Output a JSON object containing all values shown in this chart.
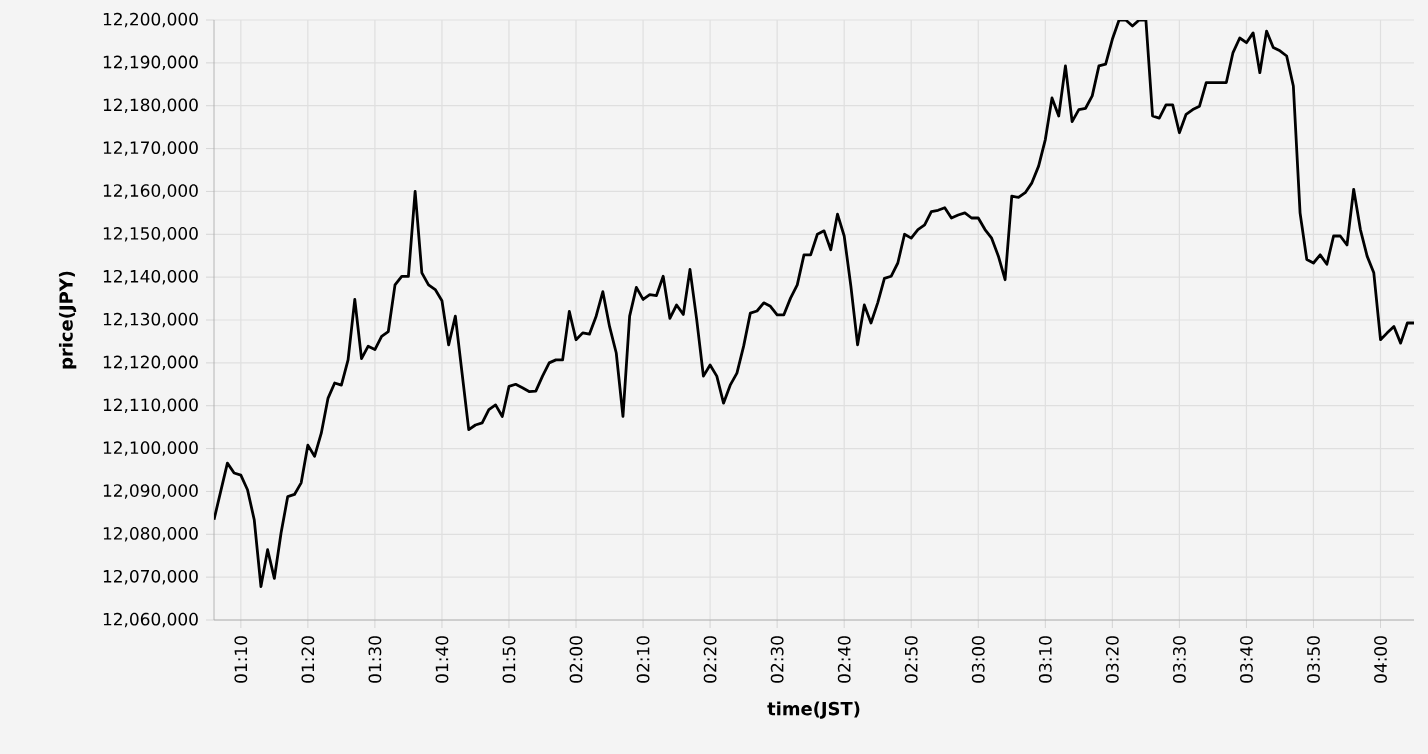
{
  "chart_data": {
    "type": "line",
    "xlabel": "time(JST)",
    "ylabel": "price(JPY)",
    "x": [
      1.1,
      1.1333,
      1.15,
      1.1667,
      1.1833,
      1.2,
      1.2167,
      1.2333,
      1.25,
      1.2667,
      1.2833,
      1.3,
      1.3167,
      1.3333,
      1.35,
      1.3667,
      1.3833,
      1.4,
      1.4167,
      1.4333,
      1.45,
      1.4667,
      1.4833,
      1.5,
      1.5167,
      1.5333,
      1.55,
      1.5667,
      1.5833,
      1.6,
      1.6167,
      1.6333,
      1.65,
      1.6667,
      1.6833,
      1.7,
      1.7167,
      1.7333,
      1.75,
      1.7667,
      1.7833,
      1.8,
      1.8167,
      1.8333,
      1.85,
      1.8667,
      1.8833,
      1.9,
      1.9167,
      1.9333,
      1.95,
      1.9667,
      1.9833,
      2.0,
      2.0167,
      2.0333,
      2.05,
      2.0667,
      2.0833,
      2.1,
      2.1167,
      2.1333,
      2.15,
      2.1667,
      2.1833,
      2.2,
      2.2167,
      2.2333,
      2.25,
      2.2667,
      2.2833,
      2.3,
      2.3167,
      2.3333,
      2.35,
      2.3667,
      2.3833,
      2.4,
      2.4167,
      2.4333,
      2.45,
      2.4667,
      2.4833,
      2.5,
      2.5167,
      2.5333,
      2.55,
      2.5667,
      2.5833,
      2.6,
      2.6167,
      2.6333,
      2.65,
      2.6667,
      2.6833,
      2.7,
      2.7167,
      2.7333,
      2.75,
      2.7667,
      2.7833,
      2.8,
      2.8167,
      2.8333,
      2.85,
      2.8667,
      2.8833,
      2.9,
      2.9167,
      2.9333,
      2.95,
      2.9667,
      2.9833,
      3.0,
      3.0167,
      3.0333,
      3.05,
      3.0667,
      3.0833,
      3.1,
      3.1167,
      3.1333,
      3.15,
      3.1667,
      3.1833,
      3.2,
      3.2167,
      3.2333,
      3.25,
      3.2667,
      3.2833,
      3.3,
      3.3167,
      3.3333,
      3.35,
      3.3667,
      3.3833,
      3.4,
      3.4167,
      3.4333,
      3.45,
      3.4667,
      3.4833,
      3.5,
      3.5167,
      3.5333,
      3.55,
      3.5667,
      3.5833,
      3.6,
      3.6167,
      3.6333,
      3.65,
      3.6667,
      3.6833,
      3.7,
      3.7167,
      3.7333,
      3.75,
      3.7667,
      3.7833,
      3.8,
      3.8167,
      3.8333,
      3.85,
      3.8667,
      3.8833,
      3.9,
      3.9167,
      3.9333,
      3.95,
      3.9667,
      3.9833,
      4.0,
      4.0167,
      4.0333,
      4.05,
      4.0667,
      4.0833
    ],
    "series": [
      {
        "color": "#000000",
        "values": [
          12083400,
          12096600,
          12094300,
          12093800,
          12090400,
          12083400,
          12067800,
          12076400,
          12069700,
          12080300,
          12088800,
          12089300,
          12092000,
          12100800,
          12098200,
          12103600,
          12111700,
          12115300,
          12114800,
          12120700,
          12134800,
          12121000,
          12123900,
          12123100,
          12126200,
          12127300,
          12138200,
          12140200,
          12140200,
          12160000,
          12141000,
          12138200,
          12137100,
          12134500,
          12124200,
          12130900,
          12117600,
          12104400,
          12105500,
          12106000,
          12109100,
          12110200,
          12107500,
          12114500,
          12115000,
          12114200,
          12113300,
          12113400,
          12116900,
          12120000,
          12120700,
          12120700,
          12132000,
          12125400,
          12127000,
          12126700,
          12130900,
          12136600,
          12128500,
          12122300,
          12107500,
          12130900,
          12137600,
          12134800,
          12135900,
          12135700,
          12140200,
          12130400,
          12133500,
          12131300,
          12141800,
          12130100,
          12116900,
          12119500,
          12116900,
          12110600,
          12114800,
          12117600,
          12123900,
          12131600,
          12132100,
          12134000,
          12133200,
          12131200,
          12131200,
          12135100,
          12138200,
          12145200,
          12145200,
          12150000,
          12150800,
          12146400,
          12154700,
          12149600,
          12137900,
          12124200,
          12133500,
          12129300,
          12134000,
          12139700,
          12140200,
          12143300,
          12150000,
          12149100,
          12151100,
          12152200,
          12155300,
          12155600,
          12156200,
          12153800,
          12154500,
          12155000,
          12153800,
          12153800,
          12151100,
          12149100,
          12144900,
          12139400,
          12158900,
          12158600,
          12159700,
          12162000,
          12165900,
          12172100,
          12181800,
          12177600,
          12189300,
          12176300,
          12179100,
          12179400,
          12182300,
          12189300,
          12189700,
          12195500,
          12200000,
          12200000,
          12198600,
          12200000,
          12200000,
          12177600,
          12177100,
          12180200,
          12180200,
          12173700,
          12178000,
          12179100,
          12179900,
          12185400,
          12185400,
          12185400,
          12185400,
          12192400,
          12195800,
          12194700,
          12197000,
          12187700,
          12197400,
          12193600,
          12192800,
          12191600,
          12184600,
          12155000,
          12144100,
          12143300,
          12145200,
          12143000,
          12149600,
          12149600,
          12147500,
          12160500,
          12151100,
          12144900,
          12141000,
          12125400,
          12127000,
          12128500,
          12124600,
          12129300,
          12129300
        ]
      }
    ],
    "xlim": [
      1.1,
      4.0833
    ],
    "xticks": [
      {
        "value": 1.1667,
        "label": "01:10"
      },
      {
        "value": 1.3333,
        "label": "01:20"
      },
      {
        "value": 1.5,
        "label": "01:30"
      },
      {
        "value": 1.6667,
        "label": "01:40"
      },
      {
        "value": 1.8333,
        "label": "01:50"
      },
      {
        "value": 2.0,
        "label": "02:00"
      },
      {
        "value": 2.1667,
        "label": "02:10"
      },
      {
        "value": 2.3333,
        "label": "02:20"
      },
      {
        "value": 2.5,
        "label": "02:30"
      },
      {
        "value": 2.6667,
        "label": "02:40"
      },
      {
        "value": 2.8333,
        "label": "02:50"
      },
      {
        "value": 3.0,
        "label": "03:00"
      },
      {
        "value": 3.1667,
        "label": "03:10"
      },
      {
        "value": 3.3333,
        "label": "03:20"
      },
      {
        "value": 3.5,
        "label": "03:30"
      },
      {
        "value": 3.6667,
        "label": "03:40"
      },
      {
        "value": 3.8333,
        "label": "03:50"
      },
      {
        "value": 4.0,
        "label": "04:00"
      }
    ],
    "ylim": [
      12060000,
      12200000
    ],
    "yticks": [
      {
        "value": 12060000,
        "label": "12,060,000"
      },
      {
        "value": 12070000,
        "label": "12,070,000"
      },
      {
        "value": 12080000,
        "label": "12,080,000"
      },
      {
        "value": 12090000,
        "label": "12,090,000"
      },
      {
        "value": 12100000,
        "label": "12,100,000"
      },
      {
        "value": 12110000,
        "label": "12,110,000"
      },
      {
        "value": 12120000,
        "label": "12,120,000"
      },
      {
        "value": 12130000,
        "label": "12,130,000"
      },
      {
        "value": 12140000,
        "label": "12,140,000"
      },
      {
        "value": 12150000,
        "label": "12,150,000"
      },
      {
        "value": 12160000,
        "label": "12,160,000"
      },
      {
        "value": 12170000,
        "label": "12,170,000"
      },
      {
        "value": 12180000,
        "label": "12,180,000"
      },
      {
        "value": 12190000,
        "label": "12,190,000"
      },
      {
        "value": 12200000,
        "label": "12,200,000"
      }
    ],
    "grid": true,
    "marker": "none",
    "line_style": "solid"
  }
}
